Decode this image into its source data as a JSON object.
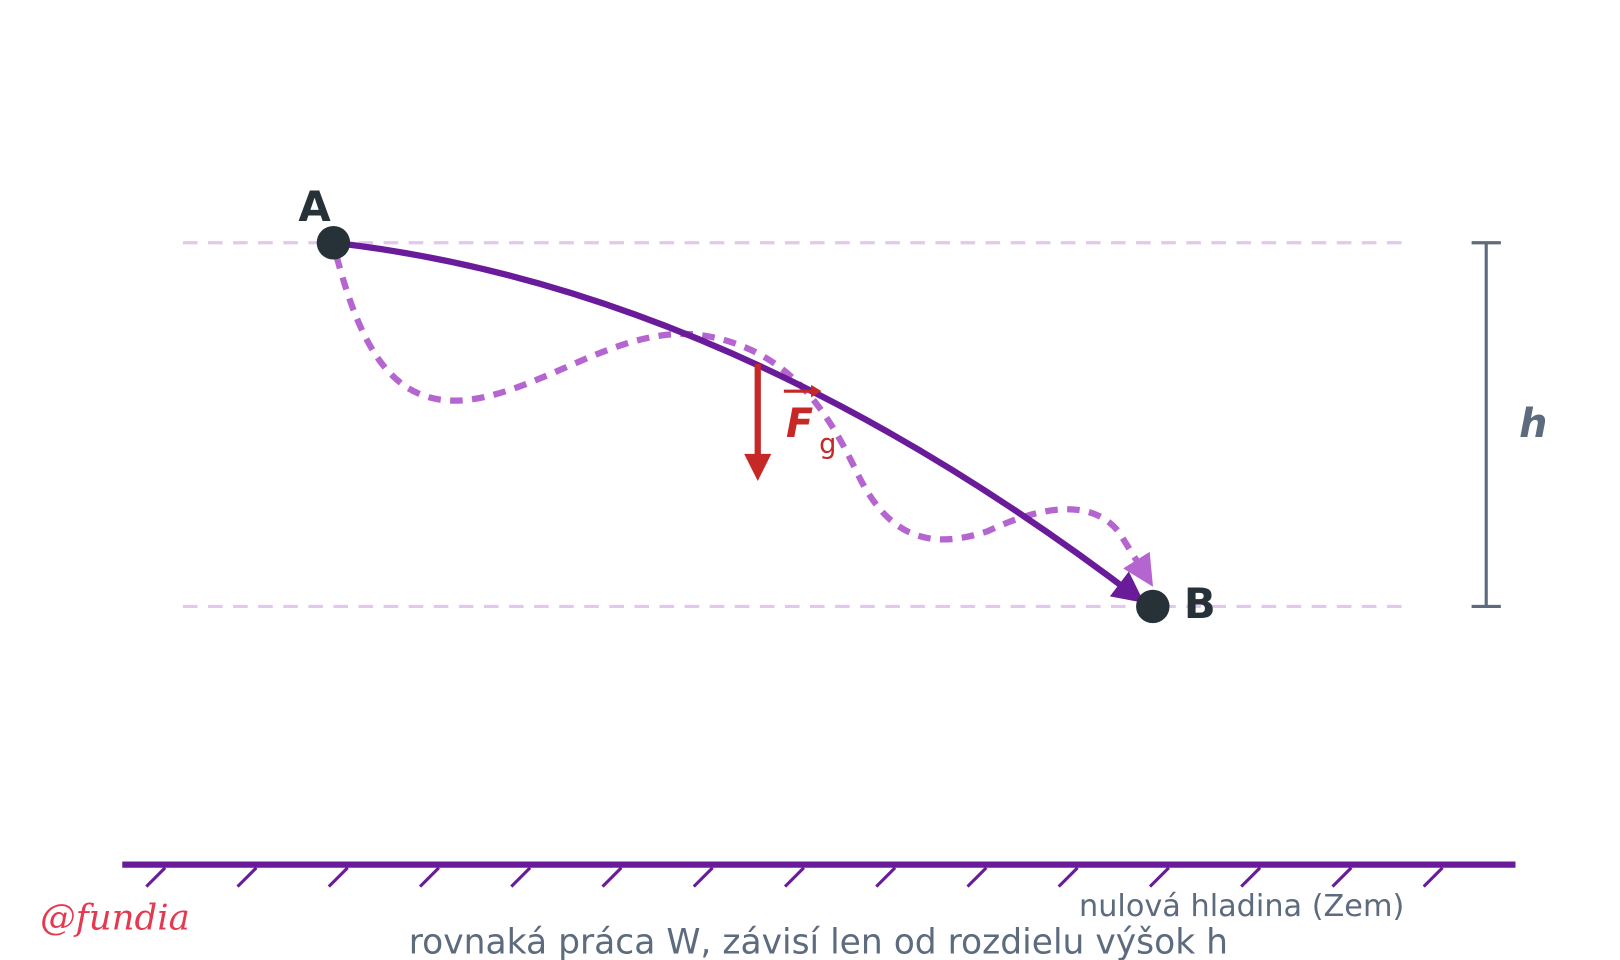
{
  "points": {
    "a": "A",
    "b": "B"
  },
  "height_label": "h",
  "force": {
    "symbol": "F",
    "subscript": "g"
  },
  "ground_label": "nulová hladina (Zem)",
  "caption": "rovnaká práca W, závisí len od rozdielu výšok h",
  "watermark": "@fundia"
}
